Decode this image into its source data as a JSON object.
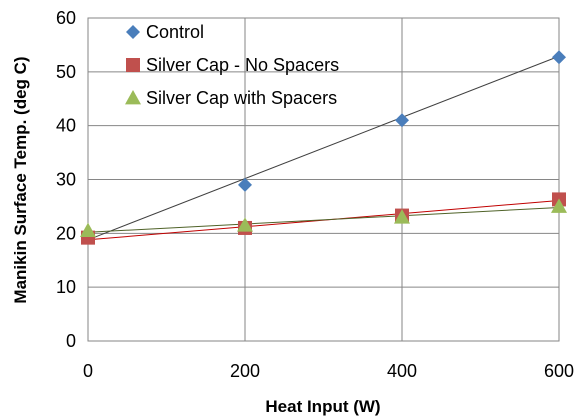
{
  "chart_data": {
    "type": "line",
    "xlabel": "Heat Input (W)",
    "ylabel": "Manikin Surface Temp.  (deg C)",
    "xlim": [
      0,
      600
    ],
    "ylim": [
      0,
      60
    ],
    "x_ticks": [
      "0",
      "200",
      "400",
      "600"
    ],
    "y_ticks": [
      "0",
      "10",
      "20",
      "30",
      "40",
      "50",
      "60"
    ],
    "grid": true,
    "legend_position": "top-left",
    "series": [
      {
        "name": "Control",
        "marker": "diamond",
        "marker_color": "#4a7ebb",
        "line_color": "#404040",
        "points": [
          [
            0,
            19.5
          ],
          [
            200,
            29
          ],
          [
            400,
            41
          ],
          [
            600,
            52.7
          ]
        ],
        "trend": [
          [
            0,
            18.8
          ],
          [
            600,
            52.9
          ]
        ]
      },
      {
        "name": "Silver Cap - No Spacers",
        "marker": "square",
        "marker_color": "#c0504d",
        "line_color": "#c00000",
        "points": [
          [
            0,
            19.2
          ],
          [
            200,
            21
          ],
          [
            400,
            23.3
          ],
          [
            600,
            26.3
          ]
        ],
        "trend": [
          [
            0,
            18.8
          ],
          [
            600,
            26.1
          ]
        ]
      },
      {
        "name": "Silver Cap with Spacers",
        "marker": "triangle",
        "marker_color": "#9bbb59",
        "line_color": "#4f6228",
        "points": [
          [
            0,
            20.5
          ],
          [
            200,
            21.5
          ],
          [
            400,
            23
          ],
          [
            600,
            25
          ]
        ],
        "trend": [
          [
            0,
            20.2
          ],
          [
            600,
            24.8
          ]
        ]
      }
    ]
  }
}
